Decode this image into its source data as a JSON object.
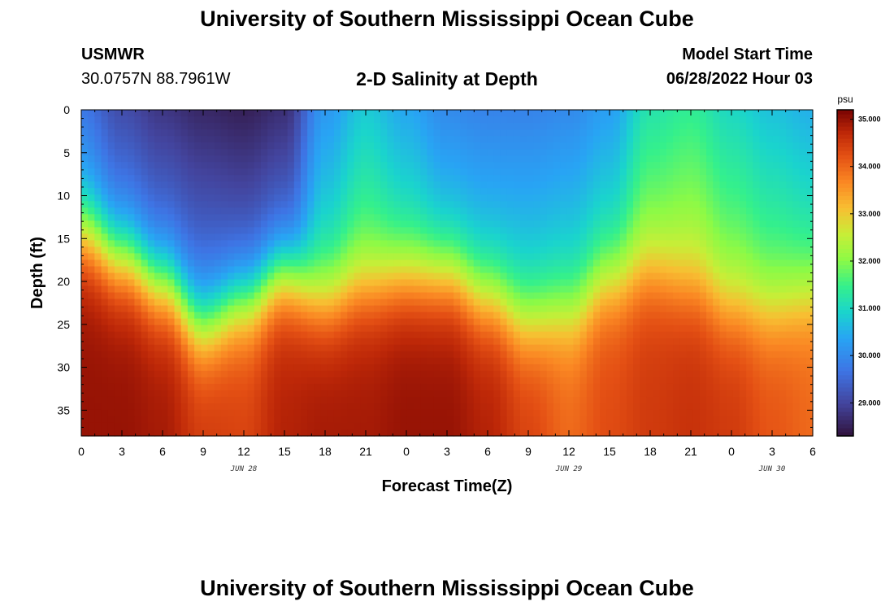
{
  "header": {
    "title": "University of Southern Mississippi Ocean Cube",
    "station": "USMWR",
    "coords": "30.0757N  88.7961W",
    "subtitle": "2-D Salinity at Depth",
    "start_label": "Model Start Time",
    "start_value": "06/28/2022 Hour 03"
  },
  "footer": {
    "title": "University of Southern Mississippi Ocean Cube"
  },
  "chart_data": {
    "type": "heatmap",
    "title": "2-D Salinity at Depth",
    "xlabel": "Forecast Time(Z)",
    "ylabel": "Depth (ft)",
    "x_tick_labels": [
      "0",
      "3",
      "6",
      "9",
      "12",
      "15",
      "18",
      "21",
      "0",
      "3",
      "6",
      "9",
      "12",
      "15",
      "18",
      "21",
      "0",
      "3",
      "6"
    ],
    "x_date_labels": [
      {
        "label": "JUN 28",
        "tick_index": 4
      },
      {
        "label": "JUN 29",
        "tick_index": 12
      },
      {
        "label": "JUN 30",
        "tick_index": 17
      }
    ],
    "x_range_hours": [
      0,
      54
    ],
    "y_ticks": [
      0,
      5,
      10,
      15,
      20,
      25,
      30,
      35
    ],
    "ylim": [
      0,
      38
    ],
    "y_inverted": true,
    "colorbar": {
      "unit": "psu",
      "range": [
        28.3,
        35.2
      ],
      "tick_values": [
        29.0,
        30.0,
        31.0,
        32.0,
        33.0,
        34.0,
        35.0
      ],
      "tick_labels": [
        "29.000",
        "30.000",
        "31.000",
        "32.000",
        "33.000",
        "34.000",
        "35.000"
      ]
    },
    "model": {
      "description_fields": [
        "surface_salinity_by_hour",
        "halocline_depth_ft_by_hour"
      ],
      "hours": [
        0,
        3,
        6,
        9,
        12,
        15,
        18,
        21,
        24,
        27,
        30,
        33,
        36,
        39,
        42,
        45,
        48,
        51,
        54
      ],
      "surface_salinity": [
        29.7,
        29.1,
        28.8,
        28.6,
        28.5,
        28.7,
        30.2,
        30.8,
        30.4,
        30.0,
        29.9,
        29.9,
        30.0,
        30.3,
        31.2,
        31.4,
        31.0,
        30.7,
        30.5
      ],
      "halocline_depth_ft": [
        14.0,
        17.0,
        20.0,
        24.5,
        22.0,
        19.0,
        21.5,
        20.0,
        19.0,
        19.0,
        21.5,
        24.0,
        23.0,
        19.5,
        18.0,
        19.5,
        22.0,
        22.5,
        21.0
      ],
      "bottom_salinity": [
        35.0,
        35.0,
        34.9,
        34.5,
        34.4,
        34.8,
        34.9,
        34.9,
        35.0,
        35.0,
        34.8,
        34.4,
        34.0,
        34.3,
        34.5,
        34.6,
        34.5,
        34.2,
        34.0
      ],
      "transition_width_ft": 6.5
    }
  }
}
